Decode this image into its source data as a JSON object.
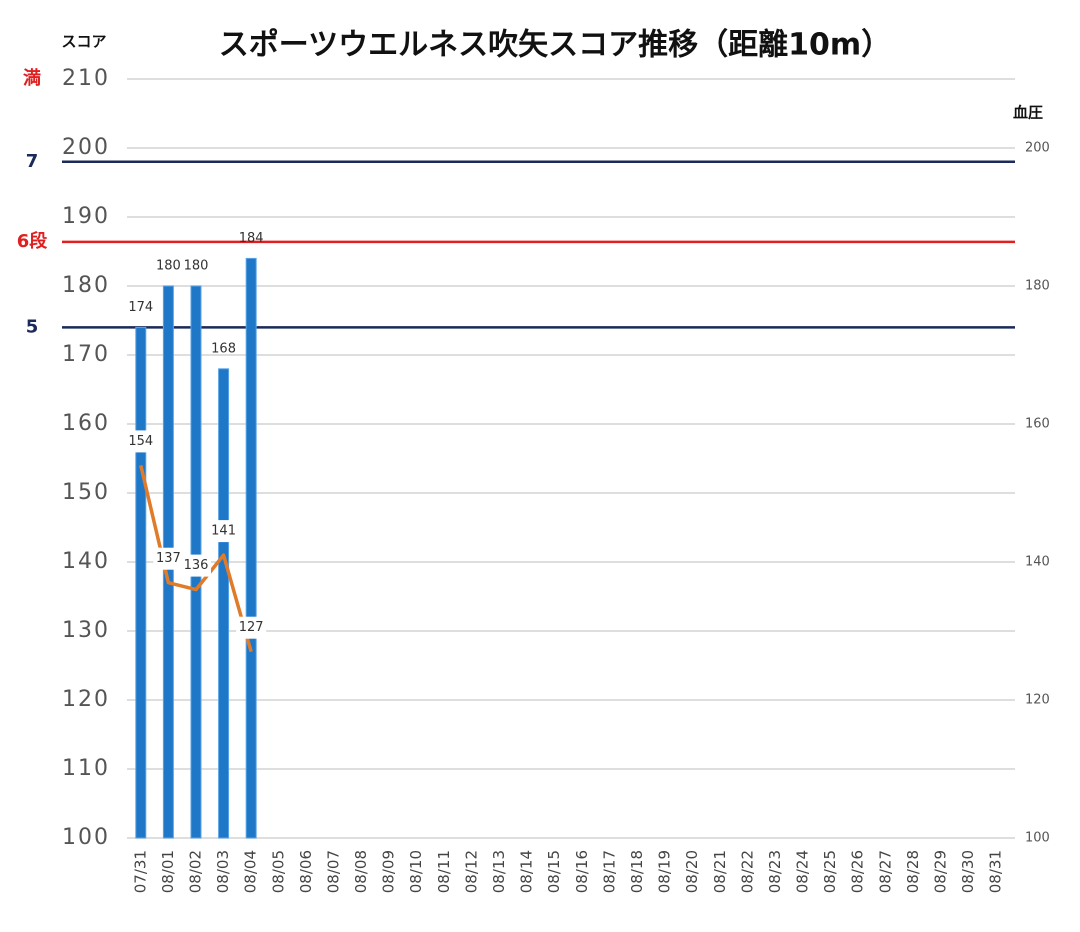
{
  "chart_data": {
    "type": "bar_line",
    "title": "スポーツウエルネス吹矢スコア推移（距離10m）",
    "y_label": "スコア",
    "y2_label": "血圧",
    "categories": [
      "07/31",
      "08/01",
      "08/02",
      "08/03",
      "08/04",
      "08/05",
      "08/06",
      "08/07",
      "08/08",
      "08/09",
      "08/10",
      "08/11",
      "08/12",
      "08/13",
      "08/14",
      "08/15",
      "08/16",
      "08/17",
      "08/18",
      "08/19",
      "08/20",
      "08/21",
      "08/22",
      "08/23",
      "08/24",
      "08/25",
      "08/26",
      "08/27",
      "08/28",
      "08/29",
      "08/30",
      "08/31"
    ],
    "series": [
      {
        "name": "スコア",
        "kind": "bar",
        "color": "#1f77c8",
        "values": [
          174,
          180,
          180,
          168,
          184,
          null,
          null,
          null,
          null,
          null,
          null,
          null,
          null,
          null,
          null,
          null,
          null,
          null,
          null,
          null,
          null,
          null,
          null,
          null,
          null,
          null,
          null,
          null,
          null,
          null,
          null,
          null
        ]
      },
      {
        "name": "血圧",
        "kind": "line",
        "axis": "y2",
        "color": "#e07b2a",
        "values": [
          154,
          137,
          136,
          141,
          127,
          null,
          null,
          null,
          null,
          null,
          null,
          null,
          null,
          null,
          null,
          null,
          null,
          null,
          null,
          null,
          null,
          null,
          null,
          null,
          null,
          null,
          null,
          null,
          null,
          null,
          null,
          null
        ]
      }
    ],
    "ylim": [
      100,
      210
    ],
    "yticks": [
      100,
      110,
      120,
      130,
      140,
      150,
      160,
      170,
      180,
      190,
      200,
      210
    ],
    "y2lim": [
      100,
      210
    ],
    "y2ticks": [
      100,
      120,
      140,
      160,
      180,
      200
    ],
    "grid": true,
    "reference_lines": [
      {
        "label": "満",
        "value": 210,
        "color": "#e02020",
        "line": false
      },
      {
        "label": "7",
        "value": 198,
        "color": "#1a2a5a",
        "line": true
      },
      {
        "label": "6段",
        "value": 186.4,
        "color": "#e02020",
        "line": true
      },
      {
        "label": "5",
        "value": 174,
        "color": "#1a2a5a",
        "line": true
      }
    ]
  }
}
